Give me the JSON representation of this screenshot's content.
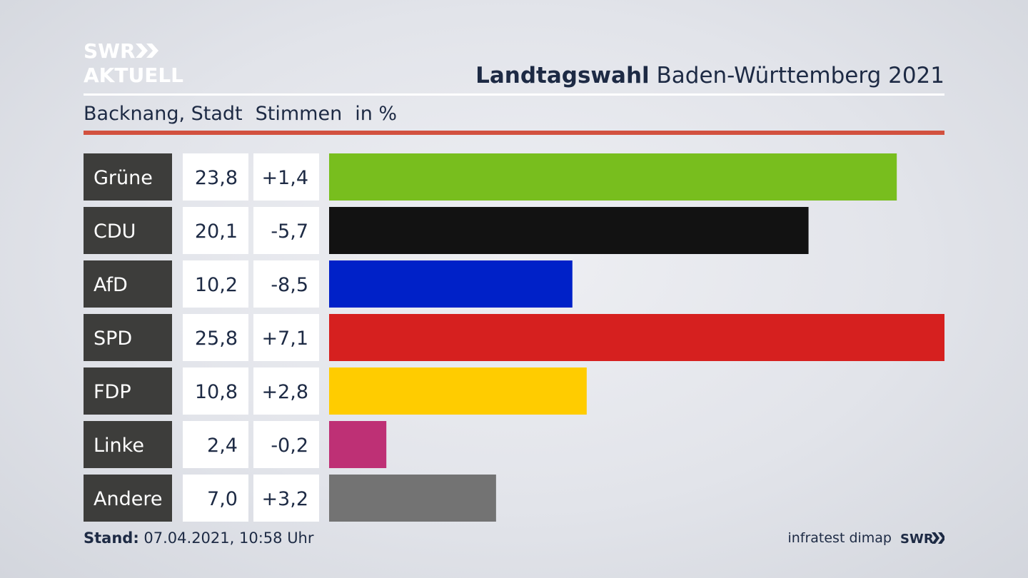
{
  "logo": {
    "line1": "SWR",
    "line2": "AKTUELL"
  },
  "header": {
    "title_bold": "Landtagswahl",
    "title_rest": "Baden-Württemberg 2021"
  },
  "subheader": {
    "location": "Backnang, Stadt",
    "measure": "Stimmen",
    "unit": "in %"
  },
  "footer": {
    "stand_label": "Stand:",
    "stand_value": "07.04.2021, 10:58 Uhr",
    "source": "infratest dimap",
    "broadcaster": "SWR"
  },
  "chart_data": {
    "type": "bar",
    "orientation": "horizontal",
    "categories": [
      "Grüne",
      "CDU",
      "AfD",
      "SPD",
      "FDP",
      "Linke",
      "Andere"
    ],
    "values": [
      23.8,
      20.1,
      10.2,
      25.8,
      10.8,
      2.4,
      7.0
    ],
    "value_labels": [
      "23,8",
      "20,1",
      "10,2",
      "25,8",
      "10,8",
      "2,4",
      "7,0"
    ],
    "changes": [
      1.4,
      -5.7,
      -8.5,
      7.1,
      2.8,
      -0.2,
      3.2
    ],
    "change_labels": [
      "+1,4",
      "-5,7",
      "-8,5",
      "+7,1",
      "+2,8",
      "-0,2",
      "+3,2"
    ],
    "colors": [
      "#78be1e",
      "#121212",
      "#0021c8",
      "#d6201f",
      "#ffcc00",
      "#be3075",
      "#737373"
    ],
    "xlim": [
      0,
      25.8
    ],
    "grid": false
  }
}
